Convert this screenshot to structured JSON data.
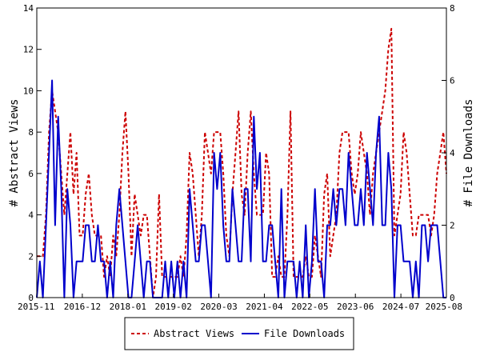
{
  "chart_data": {
    "type": "line",
    "x_start": "2015-11",
    "x_end": "2025-08",
    "x_ticks": [
      "2015-11",
      "2016-12",
      "2018-01",
      "2019-02",
      "2020-03",
      "2021-04",
      "2022-05",
      "2023-06",
      "2024-07",
      "2025-08"
    ],
    "ylabel_left": "# Abstract Views",
    "ylabel_right": "# File Downloads",
    "ylim_left": [
      0,
      14
    ],
    "ylim_right": [
      0,
      8
    ],
    "yticks_left": [
      "0",
      "2",
      "4",
      "6",
      "8",
      "10",
      "12",
      "14"
    ],
    "yticks_right": [
      "0",
      "2",
      "4",
      "6",
      "8"
    ],
    "grid": false,
    "legend_position": "bottom",
    "series": [
      {
        "name": "Abstract Views",
        "axis": "left",
        "color": "#cc0000",
        "style": "dashed",
        "values": [
          2,
          2,
          2,
          4,
          8,
          10,
          9,
          8,
          6,
          4,
          6,
          8,
          5,
          7,
          3,
          3,
          5,
          6,
          4,
          3,
          3,
          3,
          1,
          2,
          1,
          3,
          2,
          4,
          7,
          9,
          6,
          2,
          5,
          4,
          3,
          4,
          4,
          2,
          0,
          1,
          5,
          1,
          1,
          1,
          1,
          1,
          1,
          2,
          1,
          3,
          7,
          6,
          4,
          2,
          4,
          8,
          7,
          6,
          8,
          8,
          8,
          6,
          3,
          2,
          5,
          7,
          9,
          5,
          4,
          7,
          9,
          6,
          4,
          4,
          4,
          7,
          6,
          1,
          1,
          2,
          1,
          1,
          4,
          9,
          1,
          1,
          1,
          1,
          2,
          1,
          1,
          3,
          2,
          1,
          5,
          6,
          2,
          3,
          4,
          7,
          8,
          8,
          8,
          6,
          5,
          6,
          8,
          7,
          6,
          4,
          6,
          7,
          8,
          9,
          10,
          12,
          13,
          3,
          4,
          5,
          8,
          7,
          5,
          3,
          3,
          4,
          4,
          4,
          4,
          3,
          4,
          6,
          7,
          8,
          6
        ]
      },
      {
        "name": "File Downloads",
        "axis": "right",
        "color": "#0000cc",
        "style": "solid",
        "values": [
          0,
          1,
          0,
          2,
          4,
          6,
          2,
          5,
          3,
          0,
          3,
          2,
          0,
          1,
          1,
          1,
          2,
          2,
          1,
          1,
          2,
          1,
          1,
          0,
          1,
          0,
          2,
          3,
          2,
          1,
          0,
          0,
          1,
          2,
          1,
          0,
          1,
          1,
          0,
          0,
          0,
          0,
          1,
          0,
          1,
          0,
          1,
          0,
          1,
          0,
          3,
          2,
          1,
          1,
          2,
          2,
          1,
          0,
          4,
          3,
          4,
          2,
          1,
          1,
          3,
          2,
          1,
          1,
          3,
          3,
          1,
          5,
          3,
          4,
          1,
          1,
          2,
          2,
          1,
          0,
          3,
          0,
          1,
          1,
          1,
          0,
          1,
          0,
          2,
          0,
          1,
          3,
          1,
          1,
          0,
          2,
          2,
          3,
          2,
          3,
          3,
          2,
          4,
          3,
          2,
          2,
          3,
          2,
          4,
          3,
          2,
          4,
          5,
          2,
          2,
          4,
          3,
          0,
          2,
          2,
          1,
          1,
          1,
          0,
          1,
          0,
          2,
          2,
          1,
          2,
          2,
          2,
          1,
          0,
          0
        ]
      }
    ]
  }
}
